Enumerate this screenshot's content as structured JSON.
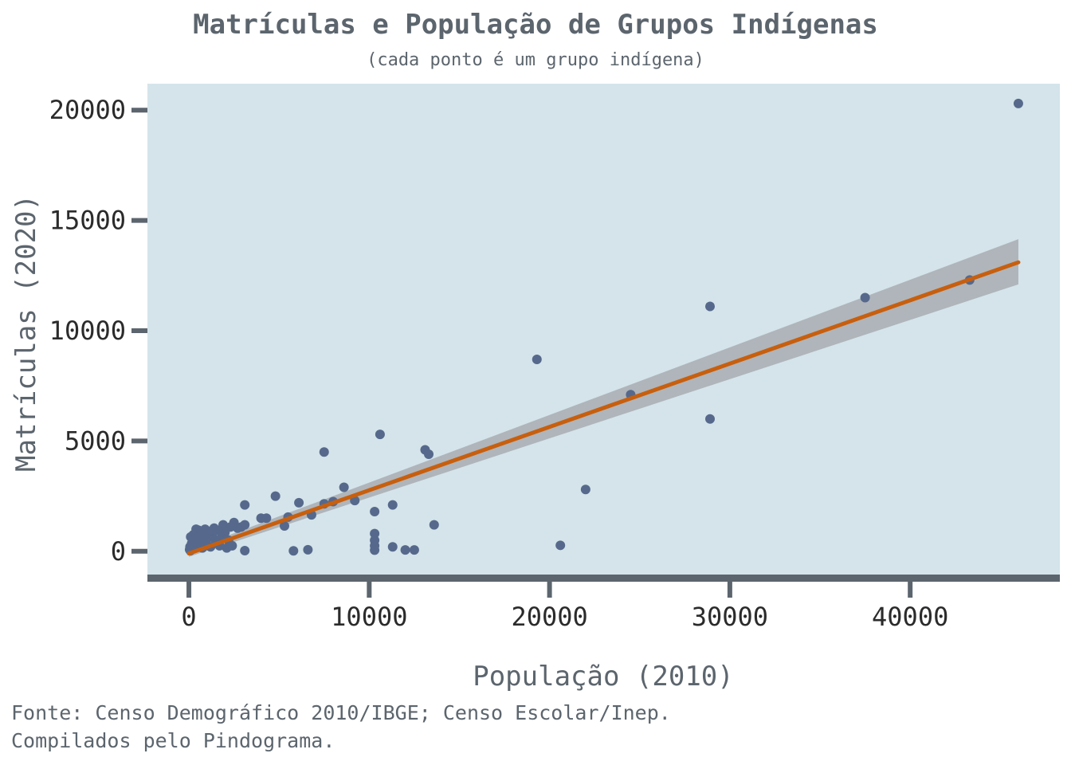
{
  "chart_data": {
    "type": "scatter",
    "title": "Matrículas e População de Grupos Indígenas",
    "subtitle": "(cada ponto é um grupo indígena)",
    "xlabel": "População (2010)",
    "ylabel": "Matrículas (2020)",
    "caption_lines": [
      "Fonte: Censo Demográfico 2010/IBGE; Censo Escolar/Inep.",
      "Compilados pelo Pindograma."
    ],
    "xlim": [
      -2300,
      48300
    ],
    "ylim": [
      -1200,
      21200
    ],
    "x_ticks": [
      0,
      10000,
      20000,
      30000,
      40000
    ],
    "y_ticks": [
      0,
      5000,
      10000,
      15000,
      20000
    ],
    "grid": false,
    "legend": "none",
    "colors": {
      "panel_background": "#d4e4ea",
      "points": "#56698c",
      "trend_line": "#c85f0e",
      "confidence_band": "#a3a6a9",
      "axis": "#5c656d"
    },
    "points": [
      [
        46000,
        20300
      ],
      [
        43300,
        12300
      ],
      [
        37500,
        11500
      ],
      [
        28900,
        11100
      ],
      [
        28900,
        6000
      ],
      [
        24500,
        7100
      ],
      [
        22000,
        2800
      ],
      [
        20600,
        270
      ],
      [
        19300,
        8700
      ],
      [
        13600,
        1200
      ],
      [
        13300,
        4400
      ],
      [
        13100,
        4600
      ],
      [
        12500,
        60
      ],
      [
        12000,
        60
      ],
      [
        11300,
        2100
      ],
      [
        11300,
        200
      ],
      [
        10600,
        5300
      ],
      [
        10300,
        1800
      ],
      [
        10300,
        800
      ],
      [
        10300,
        500
      ],
      [
        10300,
        250
      ],
      [
        10300,
        50
      ],
      [
        9200,
        2300
      ],
      [
        8600,
        2900
      ],
      [
        8000,
        2250
      ],
      [
        7500,
        4500
      ],
      [
        7500,
        2150
      ],
      [
        6800,
        1650
      ],
      [
        6600,
        70
      ],
      [
        6100,
        2200
      ],
      [
        5800,
        20
      ],
      [
        5500,
        1550
      ],
      [
        5300,
        1150
      ],
      [
        4800,
        2500
      ],
      [
        4300,
        1500
      ],
      [
        4000,
        1500
      ],
      [
        3100,
        2100
      ],
      [
        3100,
        1200
      ],
      [
        3100,
        30
      ],
      [
        2900,
        1100
      ],
      [
        2700,
        1050
      ],
      [
        2500,
        1300
      ],
      [
        2400,
        250
      ],
      [
        2300,
        1100
      ],
      [
        2200,
        500
      ],
      [
        2100,
        150
      ],
      [
        2000,
        850
      ],
      [
        1900,
        1200
      ],
      [
        1800,
        600
      ],
      [
        1700,
        250
      ],
      [
        1600,
        950
      ],
      [
        1500,
        450
      ],
      [
        1400,
        1050
      ],
      [
        1300,
        700
      ],
      [
        1200,
        200
      ],
      [
        1100,
        900
      ],
      [
        1000,
        550
      ],
      [
        950,
        350
      ],
      [
        900,
        1000
      ],
      [
        800,
        800
      ],
      [
        750,
        150
      ],
      [
        700,
        600
      ],
      [
        600,
        350
      ],
      [
        550,
        950
      ],
      [
        500,
        700
      ],
      [
        450,
        200
      ],
      [
        400,
        1000
      ],
      [
        300,
        500
      ],
      [
        250,
        750
      ],
      [
        200,
        100
      ],
      [
        150,
        350
      ],
      [
        100,
        650
      ],
      [
        80,
        30
      ],
      [
        60,
        200
      ],
      [
        40,
        80
      ]
    ],
    "trend": {
      "x": [
        0,
        46000
      ],
      "y": [
        -100,
        13100
      ],
      "band_low": [
        -250,
        12100
      ],
      "band_high": [
        50,
        14150
      ]
    }
  }
}
